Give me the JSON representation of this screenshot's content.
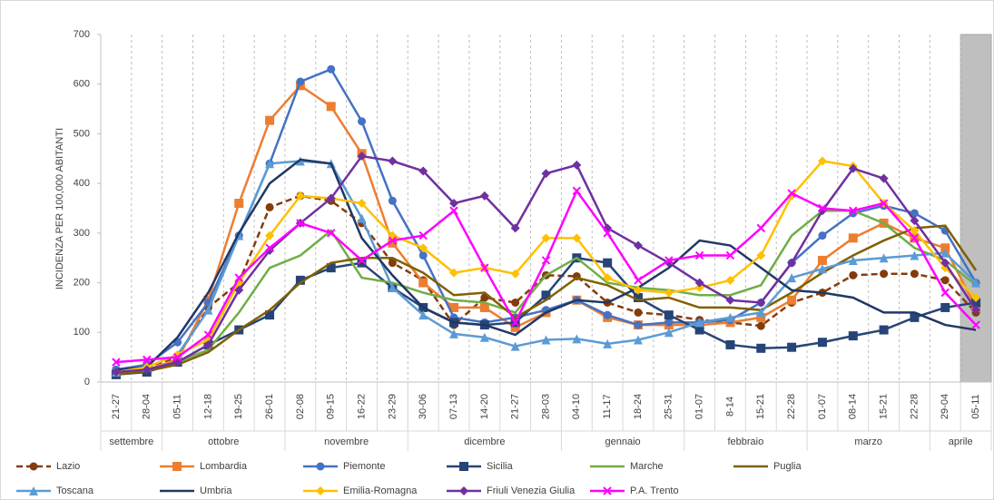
{
  "chart_data": {
    "type": "line",
    "y_label": "INCIDENZA PER 100,000 ABITANTI",
    "ylim": [
      0,
      700
    ],
    "yticks": [
      0,
      100,
      200,
      300,
      400,
      500,
      600,
      700
    ],
    "categories": [
      "21-27",
      "28-04",
      "05-11",
      "12-18",
      "19-25",
      "26-01",
      "02-08",
      "09-15",
      "16-22",
      "23-29",
      "30-06",
      "07-13",
      "14-20",
      "21-27",
      "28-03",
      "04-10",
      "11-17",
      "18-24",
      "25-31",
      "01-07",
      "8-14",
      "15-21",
      "22-28",
      "01-07",
      "08-14",
      "15-21",
      "22-28",
      "29-04",
      "05-11"
    ],
    "groups": [
      {
        "label": "settembre",
        "n": 2
      },
      {
        "label": "ottobre",
        "n": 4
      },
      {
        "label": "novembre",
        "n": 4
      },
      {
        "label": "dicembre",
        "n": 5
      },
      {
        "label": "gennaio",
        "n": 4
      },
      {
        "label": "febbraio",
        "n": 4
      },
      {
        "label": "marzo",
        "n": 4
      },
      {
        "label": "aprile",
        "n": 2
      }
    ],
    "shaded_last_category": true,
    "series": [
      {
        "name": "Lazio",
        "color": "#843C0C",
        "marker": "circle",
        "dashed": true,
        "values": [
          25,
          30,
          50,
          150,
          200,
          352,
          375,
          365,
          320,
          240,
          205,
          115,
          170,
          160,
          215,
          213,
          160,
          140,
          135,
          125,
          120,
          113,
          160,
          180,
          215,
          218,
          218,
          205,
          140
        ]
      },
      {
        "name": "Lombardia",
        "color": "#ED7D31",
        "marker": "square",
        "dashed": false,
        "values": [
          15,
          25,
          45,
          165,
          360,
          527,
          597,
          555,
          460,
          280,
          200,
          150,
          150,
          110,
          140,
          165,
          130,
          115,
          115,
          115,
          120,
          130,
          165,
          245,
          290,
          320,
          290,
          270,
          150
        ]
      },
      {
        "name": "Piemonte",
        "color": "#4472C4",
        "marker": "circle",
        "dashed": false,
        "values": [
          25,
          35,
          80,
          160,
          295,
          440,
          605,
          630,
          525,
          365,
          255,
          130,
          120,
          130,
          145,
          165,
          135,
          115,
          120,
          120,
          125,
          160,
          240,
          295,
          340,
          355,
          340,
          305,
          200
        ]
      },
      {
        "name": "Sicilia",
        "color": "#264478",
        "marker": "square",
        "dashed": false,
        "values": [
          15,
          20,
          40,
          75,
          105,
          135,
          205,
          230,
          240,
          190,
          150,
          120,
          115,
          120,
          175,
          250,
          240,
          170,
          135,
          105,
          75,
          68,
          70,
          80,
          93,
          105,
          130,
          150,
          160
        ]
      },
      {
        "name": "Marche",
        "color": "#70AD47",
        "marker": "none",
        "dashed": false,
        "values": [
          20,
          25,
          40,
          65,
          140,
          230,
          255,
          305,
          210,
          200,
          180,
          165,
          160,
          140,
          215,
          250,
          200,
          190,
          185,
          175,
          175,
          195,
          295,
          345,
          345,
          320,
          270,
          245,
          195
        ]
      },
      {
        "name": "Puglia",
        "color": "#806000",
        "marker": "none",
        "dashed": false,
        "values": [
          15,
          22,
          35,
          60,
          105,
          145,
          200,
          240,
          250,
          250,
          220,
          175,
          180,
          130,
          165,
          210,
          195,
          165,
          170,
          150,
          150,
          145,
          180,
          220,
          255,
          285,
          310,
          315,
          225
        ]
      },
      {
        "name": "Toscana",
        "color": "#5B9BD5",
        "marker": "triangle",
        "dashed": false,
        "values": [
          20,
          30,
          55,
          145,
          295,
          440,
          445,
          440,
          330,
          190,
          135,
          97,
          90,
          72,
          85,
          87,
          77,
          85,
          100,
          120,
          130,
          140,
          210,
          228,
          245,
          250,
          255,
          260,
          200
        ]
      },
      {
        "name": "Umbria",
        "color": "#203864",
        "marker": "none",
        "dashed": false,
        "values": [
          25,
          30,
          90,
          180,
          300,
          400,
          448,
          440,
          290,
          215,
          150,
          120,
          115,
          95,
          140,
          165,
          160,
          190,
          230,
          285,
          275,
          230,
          185,
          180,
          170,
          140,
          140,
          115,
          105
        ]
      },
      {
        "name": "Emilia-Romagna",
        "color": "#FFC000",
        "marker": "diamond",
        "dashed": false,
        "values": [
          20,
          30,
          55,
          85,
          200,
          295,
          375,
          370,
          360,
          295,
          270,
          220,
          230,
          218,
          290,
          290,
          210,
          185,
          180,
          190,
          205,
          255,
          375,
          445,
          435,
          360,
          305,
          230,
          170
        ]
      },
      {
        "name": "Friuli Venezia Giulia",
        "color": "#7030A0",
        "marker": "diamond",
        "dashed": false,
        "values": [
          20,
          25,
          40,
          75,
          185,
          265,
          320,
          370,
          455,
          445,
          425,
          360,
          375,
          310,
          420,
          437,
          310,
          275,
          240,
          200,
          165,
          160,
          240,
          345,
          430,
          410,
          325,
          240,
          145
        ]
      },
      {
        "name": "P.A. Trento",
        "color": "#FF00FF",
        "marker": "cross",
        "dashed": false,
        "values": [
          40,
          45,
          50,
          95,
          210,
          270,
          320,
          300,
          245,
          285,
          295,
          345,
          230,
          120,
          245,
          385,
          300,
          205,
          245,
          255,
          255,
          310,
          380,
          350,
          345,
          360,
          290,
          180,
          115
        ]
      }
    ]
  }
}
